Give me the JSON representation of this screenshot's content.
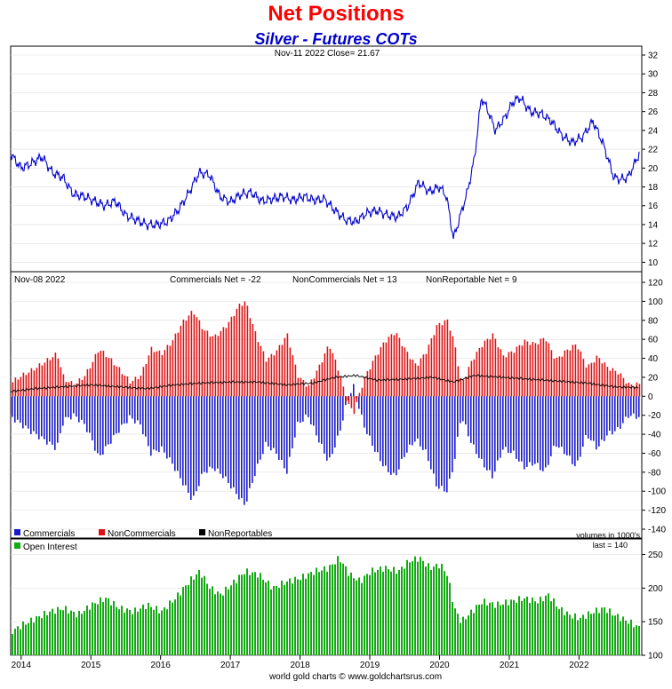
{
  "header": {
    "title": "Net Positions",
    "subtitle": "Silver - Futures COTs"
  },
  "colors": {
    "price_line": "#0000cc",
    "commercials": "#1a1acc",
    "noncommercials": "#dd1111",
    "nonreportables": "#000000",
    "open_interest": "#11aa11",
    "frame": "#000000",
    "grid": "#dddddd"
  },
  "footer": {
    "credit": "world gold charts © www.goldchartsrus.com"
  },
  "chart_data": [
    {
      "type": "line",
      "panel": "price",
      "annotation": "Nov-11  2022   Close= 21.67",
      "ylim": [
        9,
        32
      ],
      "y_ticks": [
        10,
        12,
        14,
        16,
        18,
        20,
        22,
        24,
        26,
        28,
        30,
        32
      ],
      "series": [
        {
          "x": [
            2013.85,
            2014.0,
            2014.15,
            2014.3,
            2014.45,
            2014.6,
            2014.75,
            2014.9,
            2015.05,
            2015.2,
            2015.35,
            2015.5,
            2015.65,
            2015.8,
            2015.95,
            2016.1,
            2016.25,
            2016.4,
            2016.55,
            2016.7,
            2016.85,
            2017.0,
            2017.15,
            2017.3,
            2017.45,
            2017.6,
            2017.75,
            2017.9,
            2018.05,
            2018.2,
            2018.35,
            2018.5,
            2018.65,
            2018.8,
            2018.95,
            2019.1,
            2019.25,
            2019.4,
            2019.55,
            2019.7,
            2019.85,
            2020.0,
            2020.1,
            2020.2,
            2020.3,
            2020.4,
            2020.5,
            2020.6,
            2020.7,
            2020.8,
            2020.95,
            2021.05,
            2021.15,
            2021.3,
            2021.45,
            2021.6,
            2021.75,
            2021.9,
            2022.05,
            2022.2,
            2022.35,
            2022.5,
            2022.6,
            2022.7,
            2022.8,
            2022.87
          ],
          "values": [
            21.5,
            20.0,
            20.5,
            21.2,
            19.5,
            19.0,
            17.2,
            17.0,
            16.5,
            16.0,
            16.5,
            15.0,
            14.5,
            14.0,
            14.0,
            14.3,
            15.5,
            17.3,
            19.5,
            19.3,
            17.0,
            16.4,
            17.2,
            17.4,
            16.5,
            16.7,
            17.0,
            16.6,
            17.0,
            16.6,
            16.7,
            15.5,
            14.5,
            14.3,
            15.2,
            15.5,
            15.0,
            14.8,
            16.0,
            18.5,
            17.5,
            18.0,
            17.0,
            12.5,
            15.0,
            17.5,
            21.0,
            27.5,
            26.0,
            24.0,
            25.5,
            27.0,
            27.5,
            26.0,
            25.8,
            25.0,
            23.5,
            22.7,
            23.3,
            25.0,
            22.5,
            19.0,
            18.8,
            19.0,
            20.5,
            21.67
          ]
        }
      ]
    },
    {
      "type": "bar",
      "panel": "positions",
      "annotation": "Nov-08  2022",
      "ylim": [
        -140,
        120
      ],
      "y_ticks": [
        -140,
        -120,
        -100,
        -80,
        -60,
        -40,
        -20,
        0,
        20,
        40,
        60,
        80,
        100,
        120
      ],
      "readouts": [
        "Commercials Net = -22",
        "NonCommercials Net = 13",
        "NonReportable Net = 9"
      ],
      "legend": [
        "Commercials",
        "NonCommercials",
        "NonReportables"
      ],
      "units": "volumes in 1000's",
      "series": [
        {
          "name": "Commercials",
          "x": [
            2013.85,
            2014.0,
            2014.15,
            2014.3,
            2014.5,
            2014.6,
            2014.75,
            2014.9,
            2015.0,
            2015.1,
            2015.25,
            2015.4,
            2015.55,
            2015.7,
            2015.85,
            2016.0,
            2016.15,
            2016.3,
            2016.45,
            2016.6,
            2016.75,
            2016.9,
            2017.0,
            2017.1,
            2017.2,
            2017.35,
            2017.5,
            2017.65,
            2017.8,
            2017.95,
            2018.1,
            2018.25,
            2018.4,
            2018.55,
            2018.65,
            2018.75,
            2018.9,
            2019.05,
            2019.2,
            2019.35,
            2019.5,
            2019.65,
            2019.8,
            2019.95,
            2020.1,
            2020.2,
            2020.3,
            2020.45,
            2020.6,
            2020.75,
            2020.9,
            2021.05,
            2021.2,
            2021.35,
            2021.5,
            2021.65,
            2021.8,
            2021.95,
            2022.1,
            2022.25,
            2022.4,
            2022.55,
            2022.7,
            2022.87
          ],
          "values": [
            -22,
            -30,
            -38,
            -45,
            -55,
            -25,
            -20,
            -30,
            -45,
            -65,
            -50,
            -35,
            -22,
            -30,
            -60,
            -55,
            -70,
            -90,
            -110,
            -80,
            -75,
            -85,
            -95,
            -105,
            -115,
            -80,
            -50,
            -60,
            -80,
            -30,
            -20,
            -45,
            -70,
            -40,
            -10,
            12,
            -30,
            -55,
            -75,
            -85,
            -60,
            -45,
            -60,
            -95,
            -100,
            -70,
            -20,
            -50,
            -70,
            -85,
            -55,
            -60,
            -75,
            -70,
            -80,
            -50,
            -60,
            -75,
            -40,
            -55,
            -40,
            -35,
            -20,
            -22
          ]
        },
        {
          "name": "NonCommercials",
          "x": [
            2013.85,
            2014.0,
            2014.15,
            2014.3,
            2014.5,
            2014.6,
            2014.75,
            2014.9,
            2015.0,
            2015.1,
            2015.25,
            2015.4,
            2015.55,
            2015.7,
            2015.85,
            2016.0,
            2016.15,
            2016.3,
            2016.45,
            2016.6,
            2016.75,
            2016.9,
            2017.0,
            2017.1,
            2017.2,
            2017.35,
            2017.5,
            2017.65,
            2017.8,
            2017.95,
            2018.1,
            2018.25,
            2018.4,
            2018.55,
            2018.65,
            2018.75,
            2018.9,
            2019.05,
            2019.2,
            2019.35,
            2019.5,
            2019.65,
            2019.8,
            2019.95,
            2020.1,
            2020.2,
            2020.3,
            2020.45,
            2020.6,
            2020.75,
            2020.9,
            2021.05,
            2021.2,
            2021.35,
            2021.5,
            2021.65,
            2021.8,
            2021.95,
            2022.1,
            2022.25,
            2022.4,
            2022.55,
            2022.7,
            2022.87
          ],
          "values": [
            15,
            22,
            28,
            35,
            45,
            18,
            12,
            22,
            35,
            50,
            40,
            28,
            15,
            22,
            50,
            45,
            58,
            78,
            90,
            70,
            62,
            72,
            82,
            95,
            100,
            65,
            38,
            48,
            65,
            22,
            10,
            30,
            55,
            25,
            -5,
            -18,
            18,
            40,
            58,
            68,
            48,
            32,
            48,
            75,
            80,
            55,
            12,
            38,
            55,
            65,
            42,
            48,
            58,
            55,
            62,
            38,
            48,
            55,
            30,
            42,
            30,
            25,
            12,
            13
          ]
        },
        {
          "name": "NonReportables",
          "x": [
            2013.85,
            2014.2,
            2014.6,
            2015.0,
            2015.4,
            2015.8,
            2016.2,
            2016.6,
            2017.0,
            2017.4,
            2017.8,
            2018.2,
            2018.5,
            2018.8,
            2019.1,
            2019.5,
            2019.9,
            2020.2,
            2020.5,
            2020.9,
            2021.3,
            2021.7,
            2022.1,
            2022.5,
            2022.87
          ],
          "values": [
            5,
            8,
            10,
            12,
            10,
            8,
            12,
            14,
            15,
            15,
            12,
            14,
            20,
            22,
            17,
            18,
            20,
            15,
            22,
            20,
            18,
            16,
            14,
            10,
            9
          ]
        }
      ]
    },
    {
      "type": "bar",
      "panel": "open-interest",
      "ylim": [
        100,
        260
      ],
      "y_ticks": [
        100,
        150,
        200,
        250
      ],
      "legend": [
        "Open Interest"
      ],
      "last_label": "last = 140",
      "x_ticks": [
        "2014",
        "2015",
        "2016",
        "2017",
        "2018",
        "2019",
        "2020",
        "2021",
        "2022"
      ],
      "series": [
        {
          "name": "Open Interest",
          "x": [
            2013.85,
            2014.0,
            2014.2,
            2014.4,
            2014.6,
            2014.8,
            2015.0,
            2015.2,
            2015.4,
            2015.6,
            2015.8,
            2016.0,
            2016.2,
            2016.4,
            2016.55,
            2016.7,
            2016.85,
            2017.0,
            2017.2,
            2017.4,
            2017.6,
            2017.8,
            2018.0,
            2018.2,
            2018.4,
            2018.55,
            2018.7,
            2018.85,
            2019.0,
            2019.2,
            2019.4,
            2019.55,
            2019.7,
            2019.85,
            2020.0,
            2020.1,
            2020.2,
            2020.3,
            2020.45,
            2020.6,
            2020.8,
            2021.0,
            2021.2,
            2021.4,
            2021.55,
            2021.7,
            2021.85,
            2022.0,
            2022.1,
            2022.2,
            2022.35,
            2022.5,
            2022.7,
            2022.87
          ],
          "values": [
            135,
            145,
            155,
            165,
            170,
            160,
            175,
            185,
            170,
            165,
            175,
            165,
            185,
            210,
            225,
            200,
            190,
            205,
            225,
            220,
            200,
            210,
            215,
            225,
            230,
            245,
            220,
            210,
            225,
            230,
            225,
            240,
            245,
            230,
            235,
            220,
            170,
            150,
            165,
            180,
            175,
            180,
            185,
            180,
            190,
            170,
            160,
            155,
            160,
            165,
            170,
            160,
            150,
            140
          ]
        }
      ]
    }
  ]
}
